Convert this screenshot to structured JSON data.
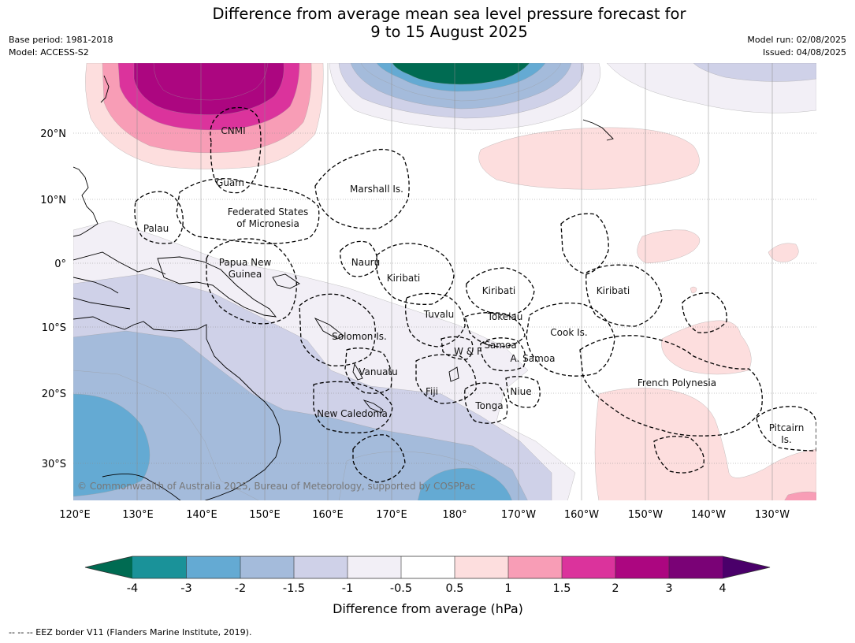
{
  "header": {
    "title_line1": "Difference from average mean sea level pressure forecast for",
    "title_line2": "9 to 15 August 2025",
    "base_period": "Base period: 1981-2018",
    "model": "Model: ACCESS-S2",
    "model_run": "Model run: 02/08/2025",
    "issued": "Issued: 04/08/2025"
  },
  "map": {
    "longitude_ticks": [
      "120°E",
      "130°E",
      "140°E",
      "150°E",
      "160°E",
      "170°E",
      "180°",
      "170°W",
      "160°W",
      "150°W",
      "140°W",
      "130°W"
    ],
    "latitude_ticks": [
      "20°N",
      "10°N",
      "0°",
      "10°S",
      "20°S",
      "30°S"
    ],
    "place_labels": {
      "cnmi": "CNMI",
      "guam": "Guam",
      "marshall": "Marshall Is.",
      "fsm_1": "Federated States",
      "fsm_2": "of Micronesia",
      "palau": "Palau",
      "png_1": "Papua New",
      "png_2": "Guinea",
      "nauru": "Nauru",
      "kiribati_w": "Kiribati",
      "kiribati_c": "Kiribati",
      "kiribati_e": "Kiribati",
      "tuvalu": "Tuvalu",
      "tokelau": "Tokelau",
      "cook": "Cook Is.",
      "solomon": "Solomon Is.",
      "wf": "W & F",
      "samoa": "Samoa",
      "asamoa": "A. Samoa",
      "vanuatu": "Vanuatu",
      "fiji": "Fiji",
      "niue": "Niue",
      "tonga": "Tonga",
      "fp": "French Polynesia",
      "newcal": "New Caledonia",
      "pitcairn_1": "Pitcairn",
      "pitcairn_2": "Is."
    },
    "copyright": "© Commonwealth of Australia 2025, Bureau of Meteorology, supported by COSPPac"
  },
  "colorbar": {
    "ticks": [
      "-4",
      "-3",
      "-2",
      "-1.5",
      "-1",
      "-0.5",
      "0.5",
      "1",
      "1.5",
      "2",
      "3",
      "4"
    ],
    "colors": [
      "#006b52",
      "#1a9299",
      "#64aad3",
      "#a4bbdb",
      "#cfd1e8",
      "#f2eff6",
      "#ffffff",
      "#fddede",
      "#f89db6",
      "#db339c",
      "#ac0680",
      "#7a0276",
      "#4a006a"
    ],
    "label": "Difference from average (hPa)"
  },
  "footnote": "--  --  -- EEZ border V11 (Flanders Marine Institute, 2019)."
}
